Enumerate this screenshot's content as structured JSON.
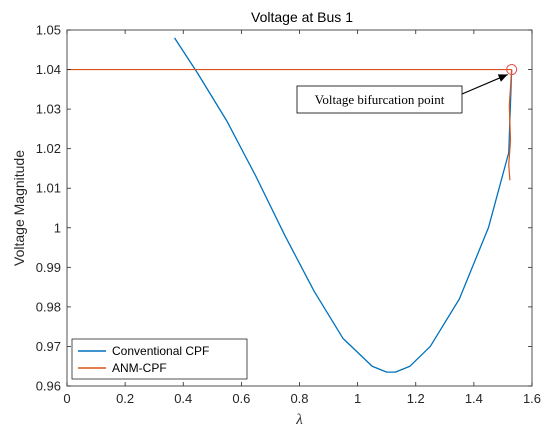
{
  "chart_data": {
    "type": "line",
    "title": "Voltage at Bus 1",
    "xlabel": "λ",
    "ylabel": "Voltage Magnitude",
    "xlim": [
      0,
      1.6
    ],
    "ylim": [
      0.96,
      1.05
    ],
    "xticks": [
      0,
      0.2,
      0.4,
      0.6,
      0.8,
      1,
      1.2,
      1.4,
      1.6
    ],
    "yticks": [
      0.96,
      0.97,
      0.98,
      0.99,
      1,
      1.01,
      1.02,
      1.03,
      1.04,
      1.05
    ],
    "xtick_labels": [
      "0",
      "0.2",
      "0.4",
      "0.6",
      "0.8",
      "1",
      "1.2",
      "1.4",
      "1.6"
    ],
    "ytick_labels": [
      "0.96",
      "0.97",
      "0.98",
      "0.99",
      "1",
      "1.01",
      "1.02",
      "1.03",
      "1.04",
      "1.05"
    ],
    "grid": false,
    "legend_position": "bottom-left",
    "series": [
      {
        "name": "Conventional CPF",
        "color": "#0072BD",
        "x": [
          0.37,
          0.45,
          0.55,
          0.65,
          0.75,
          0.85,
          0.95,
          1.05,
          1.1,
          1.13,
          1.18,
          1.25,
          1.35,
          1.45,
          1.52,
          1.53
        ],
        "y": [
          1.048,
          1.039,
          1.027,
          1.013,
          0.998,
          0.984,
          0.972,
          0.965,
          0.9635,
          0.9635,
          0.965,
          0.97,
          0.982,
          1.0,
          1.019,
          1.04
        ]
      },
      {
        "name": "ANM-CPF",
        "color": "#D95319",
        "segments": [
          {
            "x": [
              0,
              1.53
            ],
            "y": [
              1.04,
              1.04
            ]
          },
          {
            "x": [
              1.53,
              1.522,
              1.526,
              1.52,
              1.524
            ],
            "y": [
              1.04,
              1.031,
              1.022,
              1.016,
              1.012
            ]
          }
        ]
      }
    ],
    "annotations": [
      {
        "text": "Voltage bifurcation point",
        "target": {
          "x": 1.53,
          "y": 1.04
        },
        "marker": "circle"
      }
    ]
  }
}
